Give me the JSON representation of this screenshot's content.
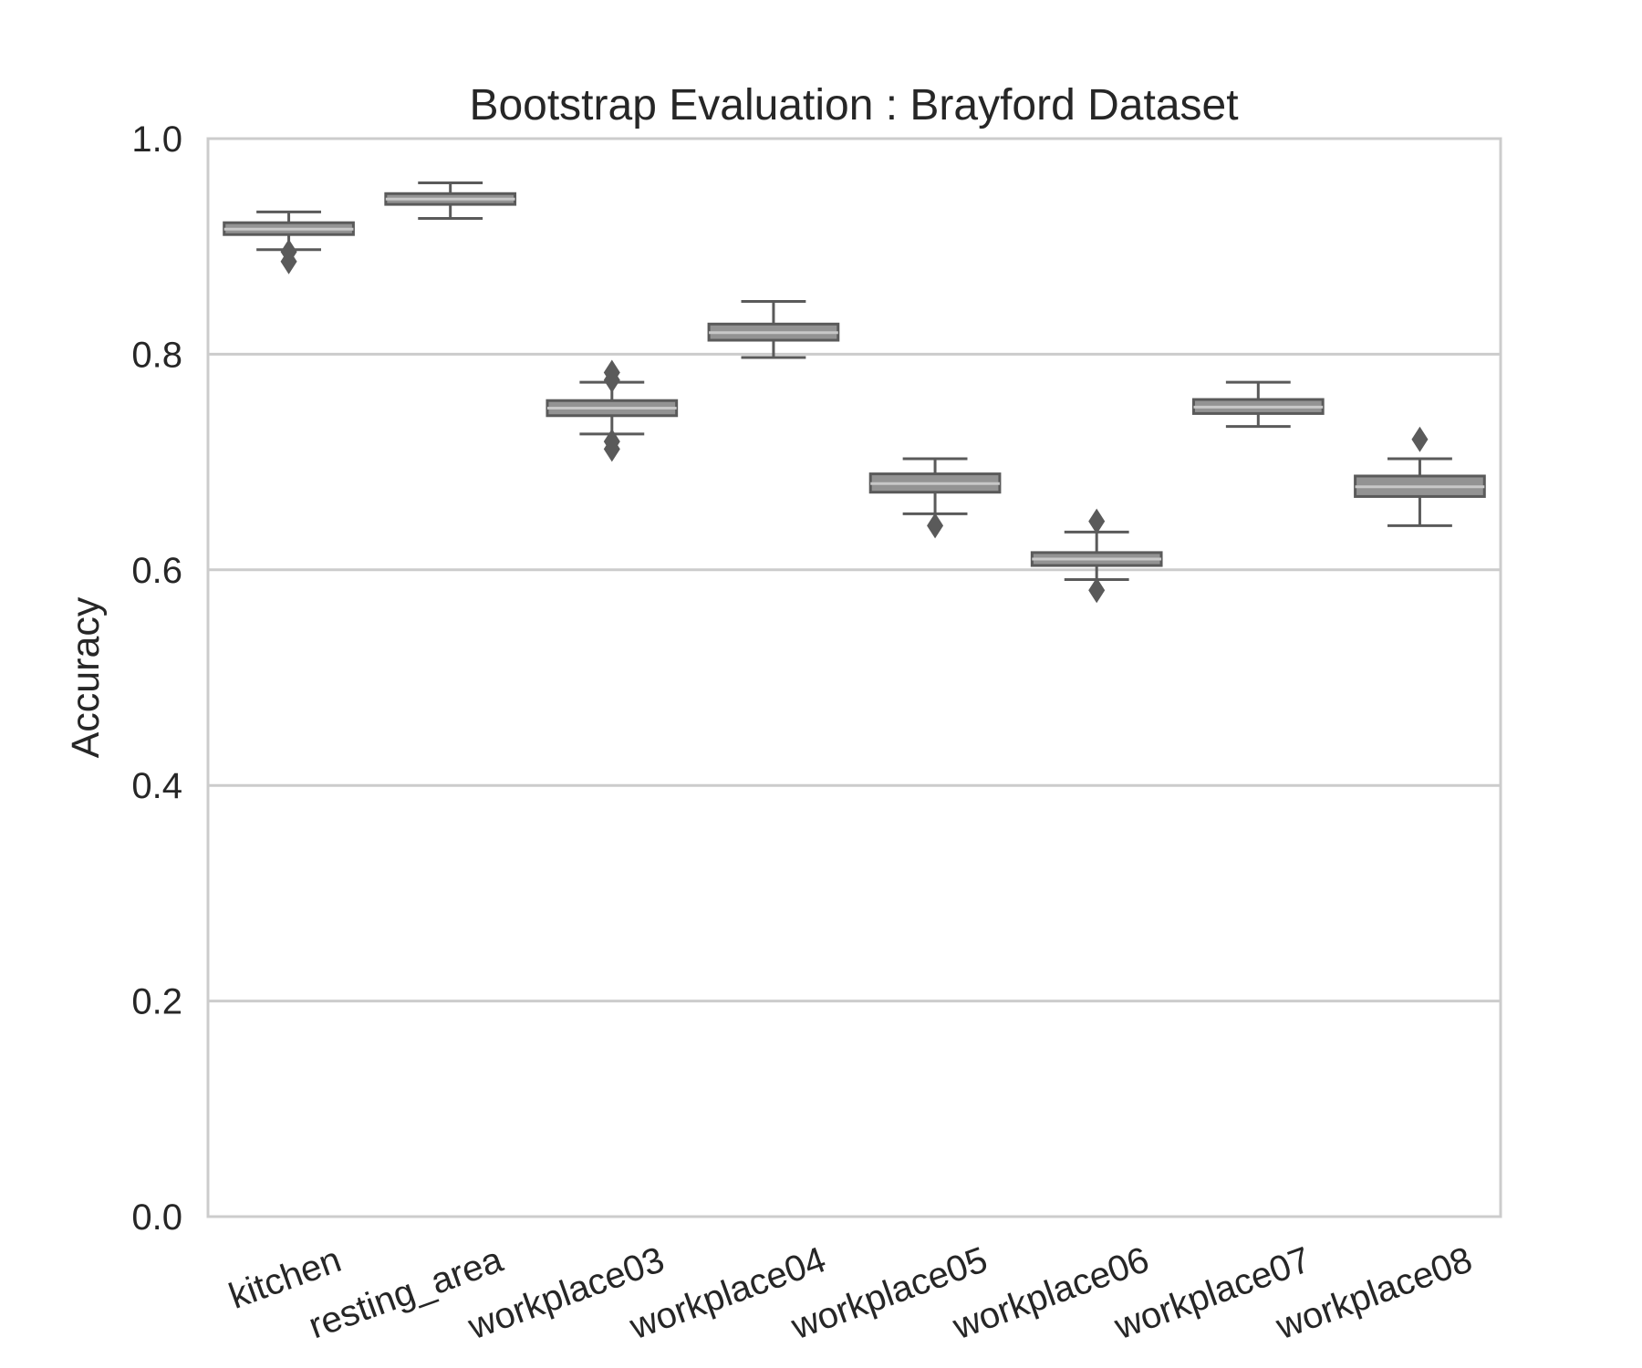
{
  "chart_data": {
    "type": "box",
    "title": "Bootstrap Evaluation : Brayford Dataset",
    "xlabel": "",
    "ylabel": "Accuracy",
    "ylim": [
      0,
      1
    ],
    "yticks": [
      "0.0",
      "0.2",
      "0.4",
      "0.6",
      "0.8",
      "1.0"
    ],
    "grid": "horizontal",
    "colors": {
      "box_fill": "#939393",
      "box_edge": "#5a5a5a",
      "grid": "#cccccc",
      "frame": "#cccccc"
    },
    "categories": [
      "kitchen",
      "resting_area",
      "workplace03",
      "workplace04",
      "workplace05",
      "workplace06",
      "workplace07",
      "workplace08"
    ],
    "boxes": [
      {
        "category": "kitchen",
        "whislo": 0.897,
        "q1": 0.911,
        "med": 0.916,
        "q3": 0.922,
        "whishi": 0.932,
        "fliers": [
          0.895,
          0.886
        ]
      },
      {
        "category": "resting_area",
        "whislo": 0.926,
        "q1": 0.939,
        "med": 0.944,
        "q3": 0.949,
        "whishi": 0.959,
        "fliers": []
      },
      {
        "category": "workplace03",
        "whislo": 0.726,
        "q1": 0.743,
        "med": 0.75,
        "q3": 0.757,
        "whishi": 0.774,
        "fliers": [
          0.783,
          0.776,
          0.719,
          0.712
        ]
      },
      {
        "category": "workplace04",
        "whislo": 0.797,
        "q1": 0.813,
        "med": 0.82,
        "q3": 0.828,
        "whishi": 0.849,
        "fliers": []
      },
      {
        "category": "workplace05",
        "whislo": 0.652,
        "q1": 0.672,
        "med": 0.68,
        "q3": 0.689,
        "whishi": 0.703,
        "fliers": [
          0.641
        ]
      },
      {
        "category": "workplace06",
        "whislo": 0.591,
        "q1": 0.604,
        "med": 0.61,
        "q3": 0.616,
        "whishi": 0.635,
        "fliers": [
          0.645,
          0.581
        ]
      },
      {
        "category": "workplace07",
        "whislo": 0.733,
        "q1": 0.745,
        "med": 0.751,
        "q3": 0.758,
        "whishi": 0.774,
        "fliers": []
      },
      {
        "category": "workplace08",
        "whislo": 0.641,
        "q1": 0.668,
        "med": 0.677,
        "q3": 0.687,
        "whishi": 0.703,
        "fliers": [
          0.721
        ]
      }
    ]
  }
}
